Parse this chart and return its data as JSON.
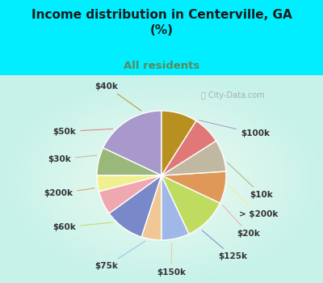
{
  "title": "Income distribution in Centerville, GA\n(%)",
  "subtitle": "All residents",
  "title_color": "#1a1a1a",
  "subtitle_color": "#5a8a5a",
  "bg_cyan": "#00eeff",
  "watermark": "City-Data.com",
  "labels": [
    "$100k",
    "$10k",
    "> $200k",
    "$20k",
    "$125k",
    "$150k",
    "$75k",
    "$60k",
    "$200k",
    "$30k",
    "$50k",
    "$40k"
  ],
  "values": [
    18,
    7,
    4,
    6,
    10,
    5,
    7,
    11,
    8,
    8,
    7,
    9
  ],
  "colors": [
    "#a898cc",
    "#9ab87a",
    "#f0f090",
    "#f0a8b0",
    "#7888c8",
    "#f0c898",
    "#a0b8e8",
    "#c0dc60",
    "#e09858",
    "#c0b8a0",
    "#e07878",
    "#b89020"
  ],
  "line_colors": [
    "#a898cc",
    "#9ab87a",
    "#f0f090",
    "#f0a8b0",
    "#7888c8",
    "#f0c898",
    "#a0b8e8",
    "#c0dc60",
    "#e09858",
    "#c0b8a0",
    "#e07878",
    "#b89020"
  ],
  "label_fontsize": 7.5,
  "label_color": "#333333",
  "title_fontsize": 11,
  "subtitle_fontsize": 9.5
}
